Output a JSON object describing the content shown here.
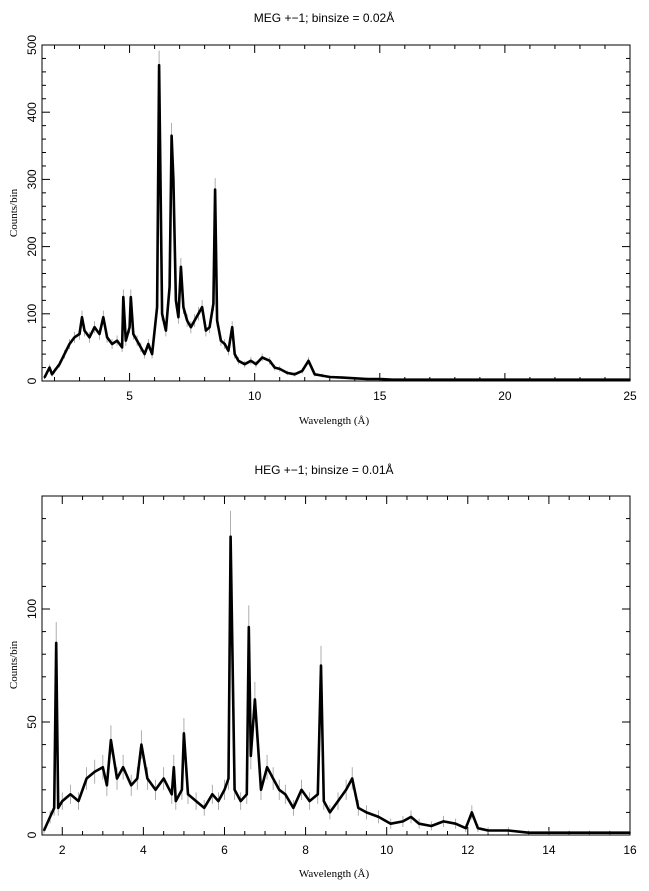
{
  "chart_data": [
    {
      "type": "line",
      "title": "MEG +−1; binsize = 0.02Å",
      "xlabel": "Wavelength (Å)",
      "ylabel": "Counts/bin",
      "xlim": [
        1.5,
        25
      ],
      "ylim": [
        0,
        500
      ],
      "xticks": [
        5,
        10,
        15,
        20,
        25
      ],
      "yticks": [
        0,
        100,
        200,
        300,
        400,
        500
      ],
      "x_minor_step": 1,
      "y_minor_step": 20,
      "has_error_bars": true,
      "series": [
        {
          "x": [
            1.6,
            1.8,
            1.9,
            2.0,
            2.2,
            2.4,
            2.6,
            2.8,
            3.0,
            3.1,
            3.2,
            3.4,
            3.6,
            3.8,
            3.95,
            4.1,
            4.3,
            4.5,
            4.7,
            4.75,
            4.85,
            5.0,
            5.05,
            5.15,
            5.3,
            5.45,
            5.6,
            5.75,
            5.9,
            6.0,
            6.1,
            6.18,
            6.3,
            6.45,
            6.6,
            6.68,
            6.75,
            6.85,
            6.95,
            7.05,
            7.15,
            7.3,
            7.45,
            7.6,
            7.75,
            7.9,
            8.05,
            8.2,
            8.35,
            8.42,
            8.5,
            8.65,
            8.8,
            8.95,
            9.1,
            9.2,
            9.35,
            9.6,
            9.85,
            10.05,
            10.3,
            10.6,
            10.8,
            11.0,
            11.3,
            11.6,
            11.9,
            12.15,
            12.4,
            12.7,
            13.0,
            13.5,
            14.0,
            14.5,
            15.0,
            15.5,
            16.0,
            17.0,
            18.0,
            19.0,
            20.0,
            21.0,
            22.0,
            23.0,
            24.0,
            25.0
          ],
          "y": [
            5,
            20,
            10,
            15,
            25,
            40,
            55,
            65,
            70,
            95,
            75,
            65,
            80,
            70,
            95,
            65,
            55,
            60,
            50,
            125,
            60,
            80,
            125,
            70,
            60,
            50,
            40,
            55,
            40,
            75,
            110,
            470,
            100,
            75,
            140,
            365,
            300,
            120,
            95,
            170,
            110,
            90,
            80,
            90,
            100,
            110,
            75,
            80,
            115,
            285,
            90,
            60,
            55,
            45,
            80,
            40,
            30,
            25,
            30,
            25,
            35,
            30,
            20,
            18,
            12,
            10,
            15,
            30,
            10,
            8,
            6,
            5,
            4,
            3,
            3,
            2,
            2,
            2,
            2,
            2,
            2,
            2,
            2,
            2,
            2,
            2
          ]
        }
      ]
    },
    {
      "type": "line",
      "title": "HEG +−1; binsize = 0.01Å",
      "xlabel": "Wavelength (Å)",
      "ylabel": "Counts/bin",
      "xlim": [
        1.5,
        16
      ],
      "ylim": [
        0,
        150
      ],
      "xticks": [
        2,
        4,
        6,
        8,
        10,
        12,
        14,
        16
      ],
      "yticks": [
        0,
        50,
        100
      ],
      "x_minor_step": 0.5,
      "y_minor_step": 10,
      "has_error_bars": true,
      "series": [
        {
          "x": [
            1.55,
            1.7,
            1.8,
            1.85,
            1.9,
            2.0,
            2.2,
            2.4,
            2.6,
            2.8,
            3.0,
            3.1,
            3.2,
            3.35,
            3.5,
            3.7,
            3.85,
            3.95,
            4.1,
            4.3,
            4.5,
            4.7,
            4.75,
            4.8,
            4.95,
            5.0,
            5.1,
            5.3,
            5.5,
            5.7,
            5.85,
            6.0,
            6.1,
            6.15,
            6.25,
            6.4,
            6.55,
            6.6,
            6.65,
            6.75,
            6.9,
            7.05,
            7.2,
            7.35,
            7.5,
            7.7,
            7.9,
            8.1,
            8.3,
            8.38,
            8.45,
            8.6,
            8.8,
            9.0,
            9.15,
            9.3,
            9.5,
            9.8,
            10.1,
            10.4,
            10.6,
            10.8,
            11.1,
            11.4,
            11.7,
            11.95,
            12.1,
            12.25,
            12.5,
            13.0,
            13.5,
            14.0,
            14.5,
            15.0,
            15.5,
            16.0
          ],
          "y": [
            2,
            8,
            12,
            85,
            12,
            15,
            18,
            15,
            25,
            28,
            30,
            22,
            42,
            25,
            30,
            22,
            25,
            40,
            25,
            20,
            25,
            18,
            30,
            15,
            20,
            45,
            18,
            15,
            12,
            18,
            15,
            20,
            25,
            132,
            20,
            15,
            18,
            92,
            35,
            60,
            20,
            30,
            25,
            20,
            18,
            12,
            20,
            15,
            18,
            75,
            15,
            10,
            15,
            20,
            25,
            12,
            10,
            8,
            5,
            6,
            8,
            5,
            4,
            6,
            5,
            3,
            10,
            3,
            2,
            2,
            1,
            1,
            1,
            1,
            1,
            1
          ]
        }
      ]
    }
  ]
}
